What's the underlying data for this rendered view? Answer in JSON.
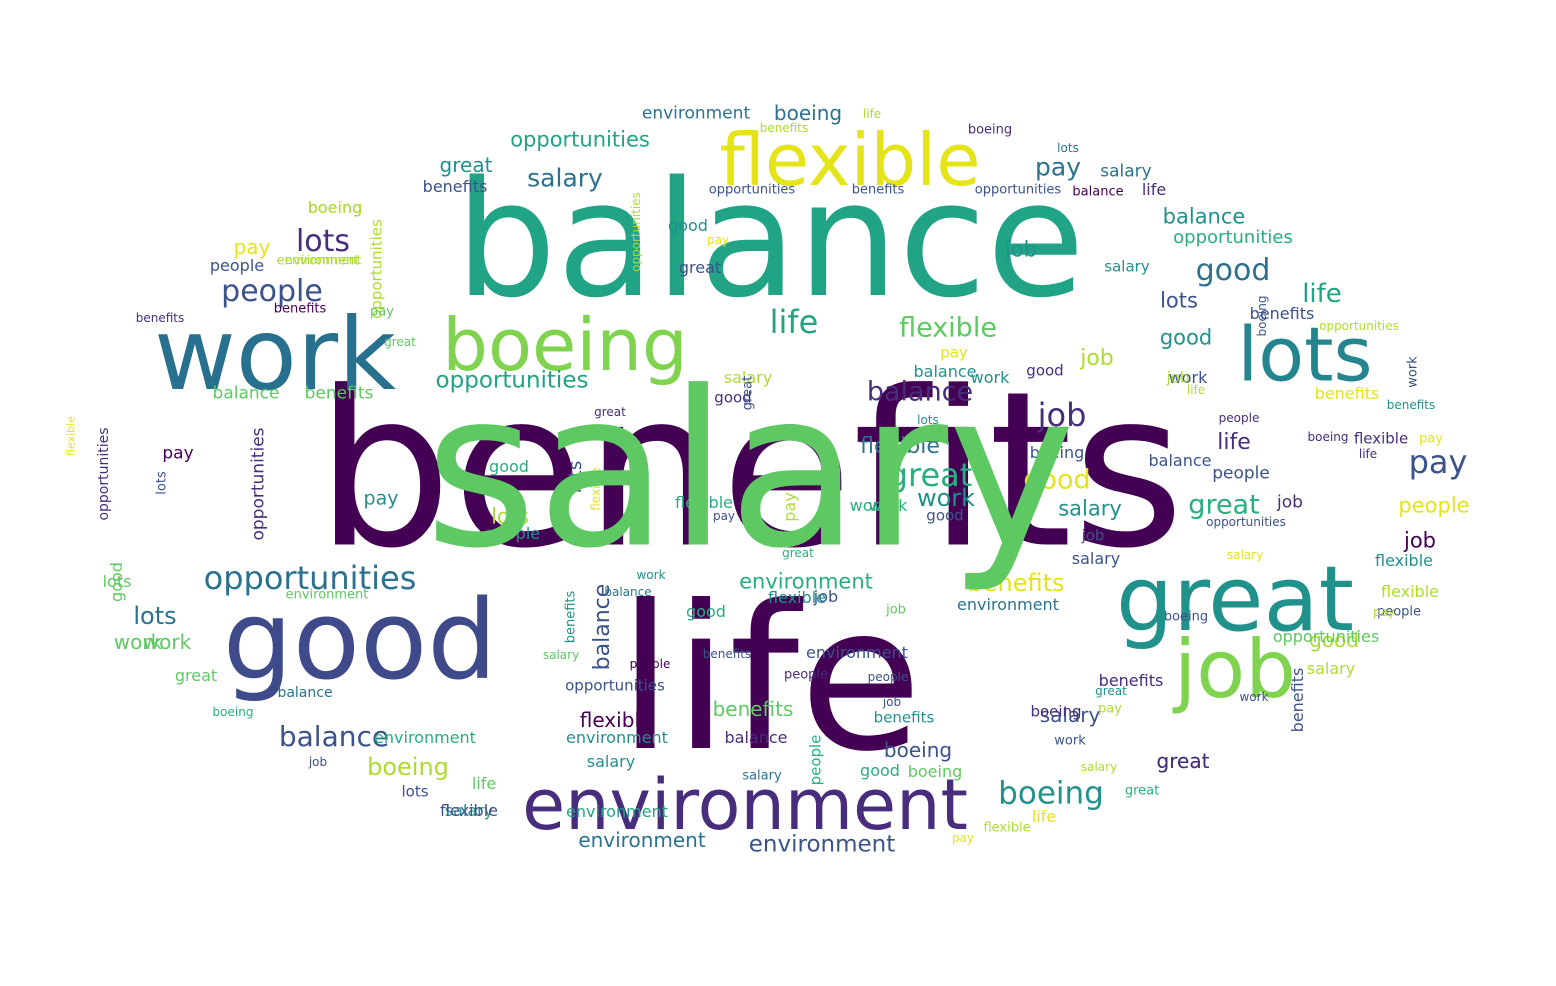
{
  "wordcloud": {
    "palette": {
      "v1": "#440154",
      "v2": "#472d7b",
      "v3": "#3b528b",
      "v4": "#2c728e",
      "v5": "#21918c",
      "v6": "#28ae80",
      "v7": "#5ec962",
      "v8": "#addc30",
      "v9": "#e5e419"
    },
    "words": [
      {
        "text": "benefits",
        "color": "#440154"
      },
      {
        "text": "life",
        "color": "#440154"
      },
      {
        "text": "balance",
        "color": "#21a386"
      },
      {
        "text": "work",
        "color": "#27718e"
      },
      {
        "text": "good",
        "color": "#3e4a89"
      },
      {
        "text": "flexible",
        "color": "#e5e419"
      },
      {
        "text": "boeing",
        "color": "#7fd34e"
      },
      {
        "text": "great",
        "color": "#21918c"
      },
      {
        "text": "job",
        "color": "#7fd34e"
      },
      {
        "text": "environment",
        "color": "#472d7b"
      },
      {
        "text": "lots",
        "color": "#25858e"
      },
      {
        "text": "opportunities",
        "color": "#21a386"
      },
      {
        "text": "opportunities",
        "color": "#2c728e"
      },
      {
        "text": "people",
        "color": "#3b528b"
      },
      {
        "text": "lots",
        "color": "#472d7b"
      },
      {
        "text": "salary",
        "color": "#2c728e"
      },
      {
        "text": "pay",
        "color": "#2c728e"
      },
      {
        "text": "great",
        "color": "#21918c"
      },
      {
        "text": "boeing",
        "color": "#2c728e"
      },
      {
        "text": "environment",
        "color": "#2c728e"
      },
      {
        "text": "life",
        "color": "#addc30"
      },
      {
        "text": "benefits",
        "color": "#addc30"
      },
      {
        "text": "boeing",
        "color": "#472d7b"
      },
      {
        "text": "lots",
        "color": "#2c728e"
      },
      {
        "text": "salary",
        "color": "#2c728e"
      },
      {
        "text": "life",
        "color": "#472d7b"
      },
      {
        "text": "opportunities",
        "color": "#28ae80"
      },
      {
        "text": "benefits",
        "color": "#3b528b"
      },
      {
        "text": "opportunities",
        "color": "#3b528b"
      },
      {
        "text": "balance",
        "color": "#440154"
      },
      {
        "text": "benefits",
        "color": "#3b528b"
      },
      {
        "text": "balance",
        "color": "#21918c"
      },
      {
        "text": "opportunities",
        "color": "#3b528b"
      },
      {
        "text": "good",
        "color": "#2c728e"
      },
      {
        "text": "great",
        "color": "#3b528b"
      },
      {
        "text": "pay",
        "color": "#e5e419"
      },
      {
        "text": "boeing",
        "color": "#addc30"
      },
      {
        "text": "environment",
        "color": "#addc30"
      },
      {
        "text": "people",
        "color": "#3b528b"
      },
      {
        "text": "job",
        "color": "#21918c"
      },
      {
        "text": "life",
        "color": "#21a386"
      },
      {
        "text": "good",
        "color": "#21918c"
      },
      {
        "text": "salary",
        "color": "#21918c"
      },
      {
        "text": "lots",
        "color": "#3b528b"
      },
      {
        "text": "flexible",
        "color": "#5ec962"
      },
      {
        "text": "life",
        "color": "#21a386"
      },
      {
        "text": "benefits",
        "color": "#472d7b"
      },
      {
        "text": "job",
        "color": "#addc30"
      },
      {
        "text": "good",
        "color": "#21918c"
      },
      {
        "text": "benefits",
        "color": "#3b528b"
      },
      {
        "text": "pay",
        "color": "#e5e419"
      },
      {
        "text": "balance",
        "color": "#472d7b"
      },
      {
        "text": "work",
        "color": "#21918c"
      },
      {
        "text": "good",
        "color": "#472d7b"
      },
      {
        "text": "balance",
        "color": "#21918c"
      },
      {
        "text": "salary",
        "color": "#addc30"
      },
      {
        "text": "job",
        "color": "#472d7b"
      },
      {
        "text": "good",
        "color": "#472d7b"
      },
      {
        "text": "benefits",
        "color": "#e5e419"
      },
      {
        "text": "work",
        "color": "#3b528b"
      },
      {
        "text": "flexible",
        "color": "#2c728e"
      },
      {
        "text": "life",
        "color": "#472d7b"
      },
      {
        "text": "great",
        "color": "#28ae80"
      },
      {
        "text": "pay",
        "color": "#3b528b"
      },
      {
        "text": "boeing",
        "color": "#3b528b"
      },
      {
        "text": "good",
        "color": "#e5e419"
      },
      {
        "text": "people",
        "color": "#3b528b"
      },
      {
        "text": "work",
        "color": "#21918c"
      },
      {
        "text": "salary",
        "color": "#21918c"
      },
      {
        "text": "great",
        "color": "#28ae80"
      },
      {
        "text": "job",
        "color": "#472d7b"
      },
      {
        "text": "people",
        "color": "#e5e419"
      },
      {
        "text": "opportunities",
        "color": "#21a386"
      },
      {
        "text": "job",
        "color": "#440154"
      },
      {
        "text": "benefits",
        "color": "#e5e419"
      },
      {
        "text": "flexible",
        "color": "#21918c"
      },
      {
        "text": "flexible",
        "color": "#addc30"
      },
      {
        "text": "environment",
        "color": "#2c728e"
      },
      {
        "text": "lots",
        "color": "#2c728e"
      },
      {
        "text": "work",
        "color": "#5ec962"
      },
      {
        "text": "flexible",
        "color": "#28ae80"
      },
      {
        "text": "balance",
        "color": "#3b528b"
      },
      {
        "text": "benefits",
        "color": "#5ec962"
      },
      {
        "text": "boeing",
        "color": "#addc30"
      },
      {
        "text": "great",
        "color": "#3b528b"
      },
      {
        "text": "environment",
        "color": "#21918c"
      },
      {
        "text": "environment",
        "color": "#2c728e"
      },
      {
        "text": "environment",
        "color": "#3b528b"
      },
      {
        "text": "flexible",
        "color": "#440154"
      },
      {
        "text": "opportunities",
        "color": "#3b528b"
      },
      {
        "text": "work",
        "color": "#28ae80"
      },
      {
        "text": "boeing",
        "color": "#3b528b"
      },
      {
        "text": "salary",
        "color": "#3b528b"
      },
      {
        "text": "balance",
        "color": "#472d7b"
      },
      {
        "text": "benefits",
        "color": "#472d7b"
      },
      {
        "text": "good",
        "color": "#addc30"
      },
      {
        "text": "boeing",
        "color": "#21918c"
      },
      {
        "text": "great",
        "color": "#472d7b"
      },
      {
        "text": "salary",
        "color": "#21918c"
      },
      {
        "text": "work",
        "color": "#5ec962"
      },
      {
        "text": "work",
        "color": "#28ae80"
      },
      {
        "text": "pay",
        "color": "#21918c"
      },
      {
        "text": "good",
        "color": "#28ae80"
      },
      {
        "text": "lots",
        "color": "#addc30"
      },
      {
        "text": "people",
        "color": "#21918c"
      },
      {
        "text": "environment",
        "color": "#21a386"
      },
      {
        "text": "people",
        "color": "#3b528b"
      },
      {
        "text": "boeing",
        "color": "#5ec962"
      },
      {
        "text": "salary",
        "color": "#addc30"
      },
      {
        "text": "opportunities",
        "color": "#472d7b"
      },
      {
        "text": "opportunities",
        "color": "#addc30"
      },
      {
        "text": "lots",
        "color": "#3b528b"
      },
      {
        "text": "good",
        "color": "#5ec962"
      },
      {
        "text": "pay",
        "color": "#440154"
      },
      {
        "text": "flexible",
        "color": "#e5e419"
      },
      {
        "text": "opportunities",
        "color": "#472d7b"
      },
      {
        "text": "lots",
        "color": "#5ec962"
      },
      {
        "text": "balance",
        "color": "#5ec962"
      },
      {
        "text": "benefits",
        "color": "#5ec962"
      },
      {
        "text": "opportunities",
        "color": "#addc30"
      },
      {
        "text": "boeing",
        "color": "#addc30"
      },
      {
        "text": "pay",
        "color": "#e5e419"
      },
      {
        "text": "environment",
        "color": "#addc30"
      },
      {
        "text": "boeing",
        "color": "#3b528b"
      },
      {
        "text": "benefits",
        "color": "#440154"
      },
      {
        "text": "pay",
        "color": "#5ec962"
      },
      {
        "text": "great",
        "color": "#5ec962"
      },
      {
        "text": "job",
        "color": "#addc30"
      },
      {
        "text": "work",
        "color": "#3b528b"
      },
      {
        "text": "life",
        "color": "#addc30"
      },
      {
        "text": "opportunities",
        "color": "#5ec962"
      },
      {
        "text": "opportunities",
        "color": "#addc30"
      },
      {
        "text": "people",
        "color": "#472d7b"
      },
      {
        "text": "great",
        "color": "#472d7b"
      },
      {
        "text": "pay",
        "color": "#e5e419"
      },
      {
        "text": "flexible",
        "color": "#472d7b"
      },
      {
        "text": "benefits",
        "color": "#21918c"
      },
      {
        "text": "boeing",
        "color": "#472d7b"
      },
      {
        "text": "lots",
        "color": "#21918c"
      },
      {
        "text": "balance",
        "color": "#3b528b"
      },
      {
        "text": "life",
        "color": "#472d7b"
      },
      {
        "text": "opportunities",
        "color": "#3b528b"
      },
      {
        "text": "good",
        "color": "#3b528b"
      },
      {
        "text": "salary",
        "color": "#e5e419"
      },
      {
        "text": "job",
        "color": "#3b528b"
      },
      {
        "text": "salary",
        "color": "#3b528b"
      },
      {
        "text": "pay",
        "color": "#addc30"
      },
      {
        "text": "boeing",
        "color": "#3b528b"
      },
      {
        "text": "benefits",
        "color": "#3b528b"
      },
      {
        "text": "work",
        "color": "#3b528b"
      },
      {
        "text": "work",
        "color": "#3b528b"
      },
      {
        "text": "salary",
        "color": "#addc30"
      },
      {
        "text": "great",
        "color": "#28ae80"
      },
      {
        "text": "life",
        "color": "#e5e419"
      },
      {
        "text": "flexible",
        "color": "#addc30"
      },
      {
        "text": "pay",
        "color": "#e5e419"
      },
      {
        "text": "salary",
        "color": "#2c728e"
      },
      {
        "text": "great",
        "color": "#21918c"
      },
      {
        "text": "job",
        "color": "#3b528b"
      },
      {
        "text": "people",
        "color": "#3b528b"
      },
      {
        "text": "environment",
        "color": "#3b528b"
      },
      {
        "text": "pay",
        "color": "#addc30"
      },
      {
        "text": "benefits",
        "color": "#21918c"
      },
      {
        "text": "people",
        "color": "#28ae80"
      },
      {
        "text": "good",
        "color": "#28ae80"
      },
      {
        "text": "salary",
        "color": "#21918c"
      },
      {
        "text": "life",
        "color": "#5ec962"
      },
      {
        "text": "lots",
        "color": "#3b528b"
      },
      {
        "text": "environment",
        "color": "#28ae80"
      },
      {
        "text": "flexible",
        "color": "#3b528b"
      },
      {
        "text": "job",
        "color": "#3b528b"
      },
      {
        "text": "boeing",
        "color": "#28ae80"
      },
      {
        "text": "balance",
        "color": "#2c728e"
      },
      {
        "text": "great",
        "color": "#5ec962"
      },
      {
        "text": "salary",
        "color": "#5ec962"
      },
      {
        "text": "people",
        "color": "#440154"
      },
      {
        "text": "benefits",
        "color": "#3b528b"
      },
      {
        "text": "people",
        "color": "#472d7b"
      },
      {
        "text": "boeing",
        "color": "#472d7b"
      },
      {
        "text": "balance",
        "color": "#3b528b"
      },
      {
        "text": "work",
        "color": "#21918c"
      },
      {
        "text": "job",
        "color": "#5ec962"
      },
      {
        "text": "balance",
        "color": "#2c728e"
      },
      {
        "text": "pay",
        "color": "#3b528b"
      },
      {
        "text": "benefits",
        "color": "#21918c"
      },
      {
        "text": "lots",
        "color": "#3b528b"
      },
      {
        "text": "flexible",
        "color": "#e5e419"
      },
      {
        "text": "environment",
        "color": "#5ec962"
      },
      {
        "text": "pay",
        "color": "#addc30"
      },
      {
        "text": "great",
        "color": "#28ae80"
      },
      {
        "text": "good",
        "color": "#28ae80"
      },
      {
        "text": "job",
        "color": "#3b528b"
      },
      {
        "text": "environment",
        "color": "#28ae80"
      },
      {
        "text": "flexible",
        "color": "#21918c"
      },
      {
        "text": "great",
        "color": "#3b528b"
      },
      {
        "text": "salary",
        "color": "#5ec962"
      }
    ]
  }
}
